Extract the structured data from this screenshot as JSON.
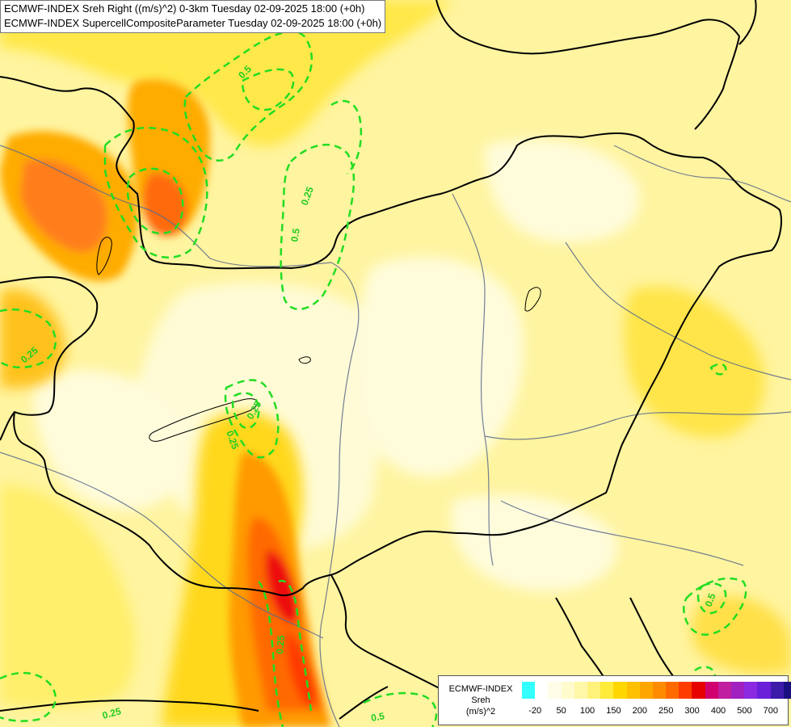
{
  "title": {
    "line1": "ECMWF-INDEX Sreh Right ((m/s)^2) 0-3km Tuesday 02-09-2025 18:00 (+0h)",
    "line2": "ECMWF-INDEX SupercellCompositeParameter Tuesday 02-09-2025 18:00 (+0h)"
  },
  "legend": {
    "title1": "ECMWF-INDEX",
    "title2": "Sreh",
    "title3": "(m/s)^2",
    "colors": [
      "#33ffff",
      "#ffffff",
      "#fffde8",
      "#fffbcc",
      "#fff7a8",
      "#fff27a",
      "#ffeb3a",
      "#ffd700",
      "#ffc000",
      "#ffa500",
      "#ff8c00",
      "#ff6a00",
      "#ff3c00",
      "#e60000",
      "#d1006f",
      "#c01fa0",
      "#a020c0",
      "#8a2be2",
      "#6a1fd8",
      "#3c1aaa",
      "#1a0f80"
    ],
    "ticks": [
      "-20",
      "50",
      "100",
      "150",
      "200",
      "250",
      "300",
      "400",
      "500",
      "700"
    ]
  },
  "contour_labels": [
    "0.5",
    "0.25",
    "0.5",
    "0.25",
    "0.25",
    "0.25",
    "0.5",
    "0.25",
    "0.25",
    "0.5"
  ],
  "colors": {
    "pale": "#fffde6",
    "light_yellow": "#fff7a8",
    "yellow": "#ffef5c",
    "gold": "#ffd21a",
    "orange": "#ffad00",
    "dark_orange": "#ff7a00",
    "red_orange": "#ff4b00",
    "red": "#f01010",
    "contour": "#22dd22",
    "border": "#000000",
    "river": "#5a6a8a"
  }
}
